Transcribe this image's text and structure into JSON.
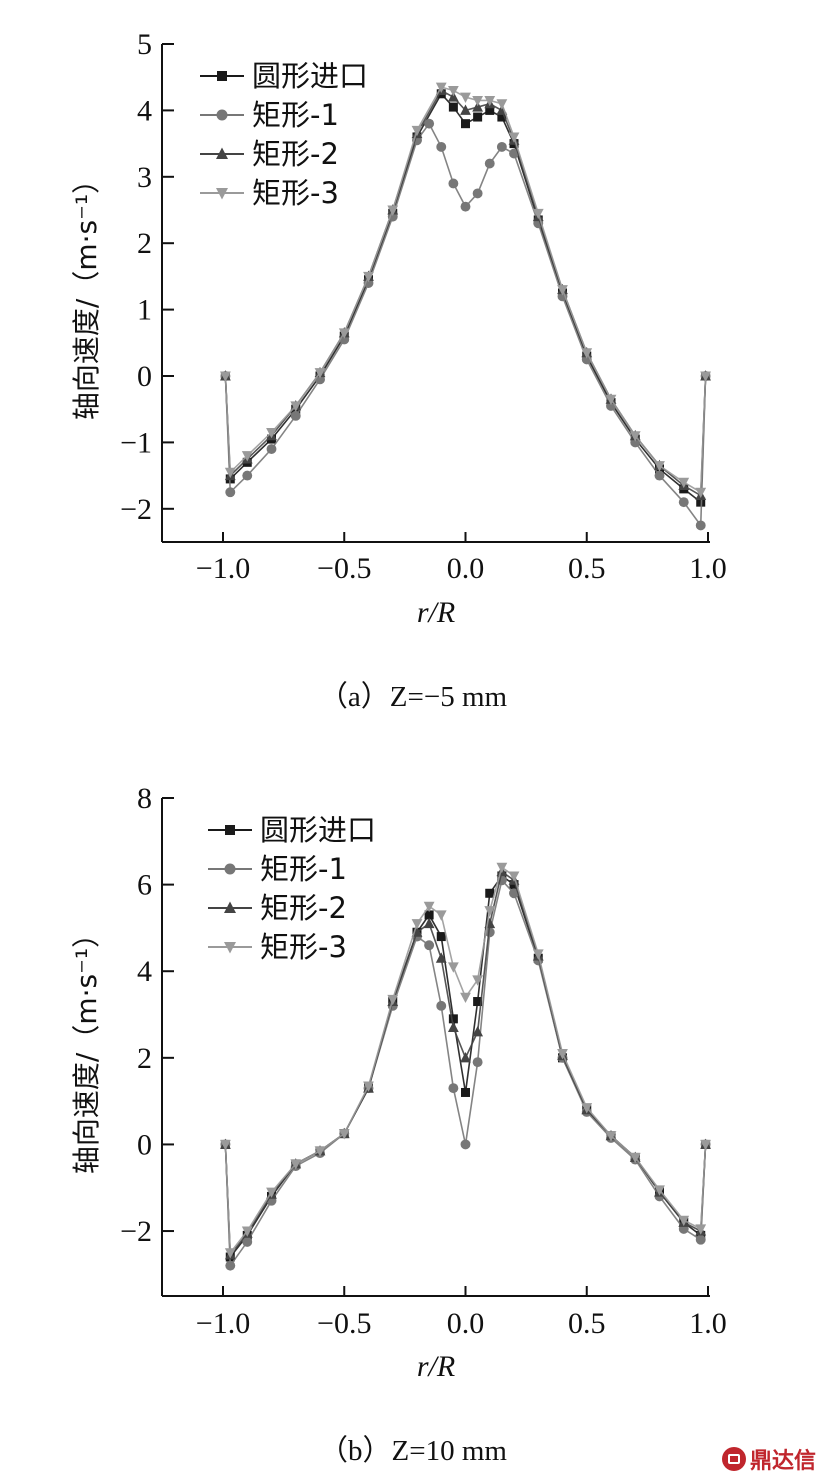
{
  "chart_data": [
    {
      "type": "line",
      "caption": "（a）Z=−5 mm",
      "ylabel": "轴向速度/（m·s⁻¹）",
      "xlabel": "r/R",
      "xlim": [
        -1.0,
        1.0
      ],
      "ylim": [
        -2,
        5
      ],
      "xticks": [
        "−1.0",
        "−0.5",
        "0.0",
        "0.5",
        "1.0"
      ],
      "yticks": [
        "−2",
        "−1",
        "0",
        "1",
        "2",
        "3",
        "4",
        "5"
      ],
      "legend_position": "top-left",
      "series": [
        {
          "name": "圆形进口",
          "marker": "square",
          "color": "#1a1a1a",
          "x": [
            -0.99,
            -0.97,
            -0.9,
            -0.8,
            -0.7,
            -0.6,
            -0.5,
            -0.4,
            -0.3,
            -0.2,
            -0.1,
            -0.05,
            0.0,
            0.05,
            0.1,
            0.15,
            0.2,
            0.3,
            0.4,
            0.5,
            0.6,
            0.7,
            0.8,
            0.9,
            0.97,
            0.99
          ],
          "y": [
            0.0,
            -1.55,
            -1.3,
            -0.95,
            -0.5,
            0.0,
            0.6,
            1.45,
            2.45,
            3.6,
            4.25,
            4.05,
            3.8,
            3.9,
            4.0,
            3.9,
            3.5,
            2.35,
            1.25,
            0.3,
            -0.4,
            -0.95,
            -1.4,
            -1.7,
            -1.9,
            0.0
          ]
        },
        {
          "name": "矩形-1",
          "marker": "circle",
          "color": "#777777",
          "x": [
            -0.99,
            -0.97,
            -0.9,
            -0.8,
            -0.7,
            -0.6,
            -0.5,
            -0.4,
            -0.3,
            -0.2,
            -0.15,
            -0.1,
            -0.05,
            0.0,
            0.05,
            0.1,
            0.15,
            0.2,
            0.3,
            0.4,
            0.5,
            0.6,
            0.7,
            0.8,
            0.9,
            0.97,
            0.99
          ],
          "y": [
            0.0,
            -1.75,
            -1.5,
            -1.1,
            -0.6,
            -0.05,
            0.55,
            1.4,
            2.4,
            3.55,
            3.8,
            3.45,
            2.9,
            2.55,
            2.75,
            3.2,
            3.45,
            3.35,
            2.3,
            1.2,
            0.25,
            -0.45,
            -1.0,
            -1.5,
            -1.9,
            -2.25,
            0.0
          ]
        },
        {
          "name": "矩形-2",
          "marker": "triangle-up",
          "color": "#444444",
          "x": [
            -0.99,
            -0.97,
            -0.9,
            -0.8,
            -0.7,
            -0.6,
            -0.5,
            -0.4,
            -0.3,
            -0.2,
            -0.1,
            -0.05,
            0.0,
            0.05,
            0.1,
            0.15,
            0.2,
            0.3,
            0.4,
            0.5,
            0.6,
            0.7,
            0.8,
            0.9,
            0.97,
            0.99
          ],
          "y": [
            0.0,
            -1.5,
            -1.25,
            -0.9,
            -0.45,
            0.05,
            0.65,
            1.5,
            2.5,
            3.65,
            4.3,
            4.2,
            4.0,
            4.05,
            4.1,
            4.0,
            3.55,
            2.4,
            1.3,
            0.35,
            -0.35,
            -0.9,
            -1.35,
            -1.65,
            -1.8,
            0.0
          ]
        },
        {
          "name": "矩形-3",
          "marker": "triangle-down",
          "color": "#9a9a9a",
          "x": [
            -0.99,
            -0.97,
            -0.9,
            -0.8,
            -0.7,
            -0.6,
            -0.5,
            -0.4,
            -0.3,
            -0.2,
            -0.1,
            -0.05,
            0.0,
            0.05,
            0.1,
            0.15,
            0.2,
            0.3,
            0.4,
            0.5,
            0.6,
            0.7,
            0.8,
            0.9,
            0.97,
            0.99
          ],
          "y": [
            0.0,
            -1.45,
            -1.2,
            -0.85,
            -0.45,
            0.05,
            0.65,
            1.5,
            2.5,
            3.7,
            4.35,
            4.3,
            4.2,
            4.15,
            4.15,
            4.1,
            3.6,
            2.45,
            1.3,
            0.35,
            -0.35,
            -0.9,
            -1.35,
            -1.6,
            -1.75,
            0.0
          ]
        }
      ]
    },
    {
      "type": "line",
      "caption": "（b）Z=10 mm",
      "ylabel": "轴向速度/（m·s⁻¹）",
      "xlabel": "r/R",
      "xlim": [
        -1.0,
        1.0
      ],
      "ylim": [
        -3.5,
        8
      ],
      "xticks": [
        "−1.0",
        "−0.5",
        "0.0",
        "0.5",
        "1.0"
      ],
      "yticks": [
        "−2",
        "0",
        "2",
        "4",
        "6",
        "8"
      ],
      "legend_position": "top-left",
      "series": [
        {
          "name": "圆形进口",
          "marker": "square",
          "color": "#1a1a1a",
          "x": [
            -0.99,
            -0.97,
            -0.9,
            -0.8,
            -0.7,
            -0.6,
            -0.5,
            -0.4,
            -0.3,
            -0.2,
            -0.15,
            -0.1,
            -0.05,
            0.0,
            0.05,
            0.1,
            0.15,
            0.2,
            0.3,
            0.4,
            0.5,
            0.6,
            0.7,
            0.8,
            0.9,
            0.97,
            0.99
          ],
          "y": [
            0.0,
            -2.6,
            -2.1,
            -1.2,
            -0.45,
            -0.15,
            0.25,
            1.3,
            3.3,
            4.9,
            5.3,
            4.8,
            2.9,
            1.2,
            3.3,
            5.8,
            6.2,
            6.0,
            4.3,
            2.0,
            0.8,
            0.2,
            -0.3,
            -1.1,
            -1.8,
            -2.1,
            0.0
          ]
        },
        {
          "name": "矩形-1",
          "marker": "circle",
          "color": "#777777",
          "x": [
            -0.99,
            -0.97,
            -0.9,
            -0.8,
            -0.7,
            -0.6,
            -0.5,
            -0.4,
            -0.3,
            -0.2,
            -0.15,
            -0.1,
            -0.05,
            0.0,
            0.05,
            0.1,
            0.15,
            0.2,
            0.3,
            0.4,
            0.5,
            0.6,
            0.7,
            0.8,
            0.9,
            0.97,
            0.99
          ],
          "y": [
            0.0,
            -2.8,
            -2.25,
            -1.3,
            -0.5,
            -0.2,
            0.25,
            1.3,
            3.2,
            4.8,
            4.6,
            3.2,
            1.3,
            0.0,
            1.9,
            4.9,
            6.1,
            5.8,
            4.25,
            2.0,
            0.75,
            0.15,
            -0.35,
            -1.2,
            -1.95,
            -2.2,
            0.0
          ]
        },
        {
          "name": "矩形-2",
          "marker": "triangle-up",
          "color": "#444444",
          "x": [
            -0.99,
            -0.97,
            -0.9,
            -0.8,
            -0.7,
            -0.6,
            -0.5,
            -0.4,
            -0.3,
            -0.2,
            -0.15,
            -0.1,
            -0.05,
            0.0,
            0.05,
            0.1,
            0.15,
            0.2,
            0.3,
            0.4,
            0.5,
            0.6,
            0.7,
            0.8,
            0.9,
            0.97,
            0.99
          ],
          "y": [
            0.0,
            -2.55,
            -2.05,
            -1.15,
            -0.45,
            -0.15,
            0.25,
            1.3,
            3.3,
            4.9,
            5.1,
            4.3,
            2.7,
            2.0,
            2.6,
            5.1,
            6.3,
            6.1,
            4.35,
            2.05,
            0.8,
            0.2,
            -0.3,
            -1.1,
            -1.8,
            -2.0,
            0.0
          ]
        },
        {
          "name": "矩形-3",
          "marker": "triangle-down",
          "color": "#9a9a9a",
          "x": [
            -0.99,
            -0.97,
            -0.9,
            -0.8,
            -0.7,
            -0.6,
            -0.5,
            -0.4,
            -0.3,
            -0.2,
            -0.15,
            -0.1,
            -0.05,
            0.0,
            0.05,
            0.1,
            0.15,
            0.2,
            0.3,
            0.4,
            0.5,
            0.6,
            0.7,
            0.8,
            0.9,
            0.97,
            0.99
          ],
          "y": [
            0.0,
            -2.5,
            -2.0,
            -1.1,
            -0.45,
            -0.15,
            0.25,
            1.35,
            3.35,
            5.1,
            5.5,
            5.3,
            4.1,
            3.4,
            3.8,
            5.4,
            6.4,
            6.2,
            4.4,
            2.1,
            0.85,
            0.2,
            -0.3,
            -1.05,
            -1.75,
            -1.95,
            0.0
          ]
        }
      ]
    }
  ],
  "watermark": {
    "text": "鼎达信",
    "color": "#c0262d"
  }
}
